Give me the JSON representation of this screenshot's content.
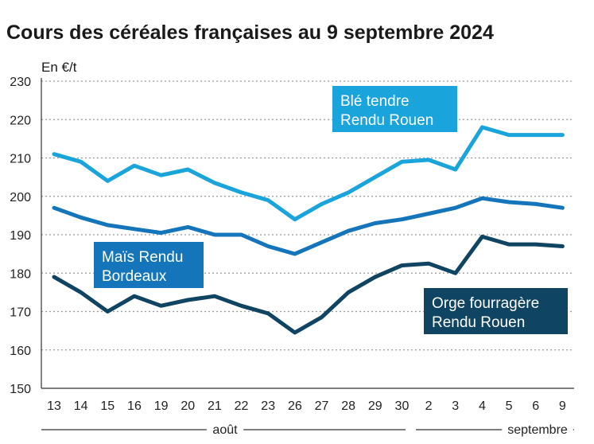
{
  "chart_data": {
    "type": "line",
    "title": "Cours des céréales françaises au 9 septembre 2024",
    "ylabel": "En €/t",
    "ylim": [
      150,
      230
    ],
    "yticks": [
      150,
      160,
      170,
      180,
      190,
      200,
      210,
      220,
      230
    ],
    "categories": [
      "13",
      "14",
      "15",
      "16",
      "19",
      "20",
      "21",
      "22",
      "23",
      "26",
      "27",
      "28",
      "29",
      "30",
      "2",
      "3",
      "4",
      "5",
      "6",
      "9"
    ],
    "month_groups": [
      {
        "label": "août",
        "start": 0,
        "end": 13
      },
      {
        "label": "septembre",
        "start": 14,
        "end": 19
      }
    ],
    "grid": true,
    "series": [
      {
        "name": "Blé tendre Rendu Rouen",
        "label_lines": [
          "Blé tendre",
          "Rendu Rouen"
        ],
        "color": "#1aa4dc",
        "values": [
          211,
          209,
          204,
          208,
          205.5,
          207,
          203.5,
          201,
          199,
          194,
          198,
          201,
          205,
          209,
          209.5,
          207,
          218,
          216,
          216,
          216
        ]
      },
      {
        "name": "Maïs Rendu Bordeaux",
        "label_lines": [
          "Maïs Rendu",
          "Bordeaux"
        ],
        "color": "#1575bb",
        "values": [
          197,
          194.5,
          192.5,
          191.5,
          190.5,
          192,
          190,
          190,
          187,
          185,
          188,
          191,
          193,
          194,
          195.5,
          197,
          199.5,
          198.5,
          198,
          197
        ]
      },
      {
        "name": "Orge fourragère Rendu Rouen",
        "label_lines": [
          "Orge fourragère",
          "Rendu Rouen"
        ],
        "color": "#0f4463",
        "values": [
          179,
          175,
          170,
          174,
          171.5,
          173,
          174,
          171.5,
          169.5,
          164.5,
          168.5,
          175,
          179,
          182,
          182.5,
          180,
          189.5,
          187.5,
          187.5,
          187
        ]
      }
    ]
  }
}
